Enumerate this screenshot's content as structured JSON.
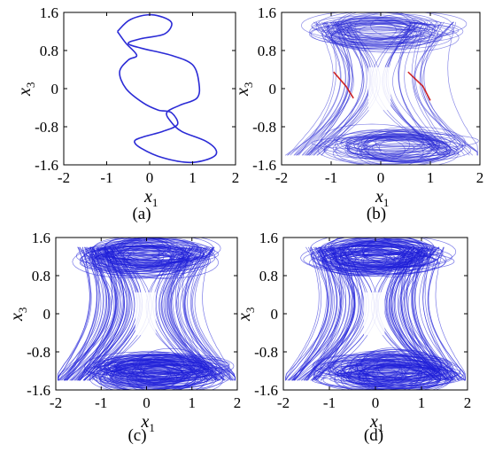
{
  "chart_data": [
    {
      "panel": "a",
      "type": "line",
      "caption": "(a)",
      "xlabel": "x",
      "xlabel_sub": "1",
      "ylabel": "x",
      "ylabel_sub": "3",
      "xlim": [
        -2,
        2
      ],
      "ylim": [
        -1.6,
        1.6
      ],
      "xticks": [
        "-2",
        "-1",
        "0",
        "1",
        "2"
      ],
      "yticks": [
        "1.6",
        "0.8",
        "0",
        "-0.8",
        "-1.6"
      ],
      "series_color": "#2b2bd6",
      "density": "periodic",
      "x": [
        -0.75,
        -0.45,
        0.05,
        0.5,
        0.35,
        -0.2,
        -0.5,
        -0.2,
        0.5,
        1.0,
        1.15,
        1.1,
        0.7,
        0.4,
        0.5,
        0.75,
        1.3,
        1.55,
        1.45,
        0.95,
        0.3,
        -0.2,
        -0.35,
        -0.1,
        0.3,
        0.65,
        0.5,
        0.2,
        -0.15,
        -0.55,
        -0.7,
        -0.5,
        -0.3,
        -0.55,
        -0.75
      ],
      "y": [
        1.2,
        1.45,
        1.55,
        1.4,
        1.15,
        1.05,
        0.95,
        0.85,
        0.7,
        0.5,
        0.1,
        -0.2,
        -0.35,
        -0.5,
        -0.7,
        -0.9,
        -1.1,
        -1.3,
        -1.45,
        -1.55,
        -1.45,
        -1.25,
        -1.1,
        -1.0,
        -0.9,
        -0.75,
        -0.5,
        -0.45,
        -0.3,
        0.0,
        0.35,
        0.6,
        0.7,
        0.95,
        1.2
      ]
    },
    {
      "panel": "b",
      "type": "line",
      "caption": "(b)",
      "xlabel": "x",
      "xlabel_sub": "1",
      "ylabel": "x",
      "ylabel_sub": "3",
      "xlim": [
        -2,
        2
      ],
      "ylim": [
        -1.6,
        1.6
      ],
      "xticks": [
        "-2",
        "-1",
        "0",
        "1",
        "2"
      ],
      "yticks": [
        "1.6",
        "0.8",
        "0",
        "-0.8",
        "-1.6"
      ],
      "series_color": "#2b2bd6",
      "highlight_color": "#cc1111",
      "density": "medium"
    },
    {
      "panel": "c",
      "type": "line",
      "caption": "(c)",
      "xlabel": "x",
      "xlabel_sub": "1",
      "ylabel": "x",
      "ylabel_sub": "3",
      "xlim": [
        -2,
        2
      ],
      "ylim": [
        -1.6,
        1.6
      ],
      "xticks": [
        "-2",
        "-1",
        "0",
        "1",
        "2"
      ],
      "yticks": [
        "1.6",
        "0.8",
        "0",
        "-0.8",
        "-1.6"
      ],
      "series_color": "#1f1fd9",
      "density": "high"
    },
    {
      "panel": "d",
      "type": "line",
      "caption": "(d)",
      "xlabel": "x",
      "xlabel_sub": "1",
      "ylabel": "x",
      "ylabel_sub": "3",
      "xlim": [
        -2,
        2
      ],
      "ylim": [
        -1.6,
        1.6
      ],
      "xticks": [
        "-2",
        "-1",
        "0",
        "1",
        "2"
      ],
      "yticks": [
        "1.6",
        "0.8",
        "0",
        "-0.8",
        "-1.6"
      ],
      "series_color": "#1f1fd9",
      "density": "high"
    }
  ]
}
